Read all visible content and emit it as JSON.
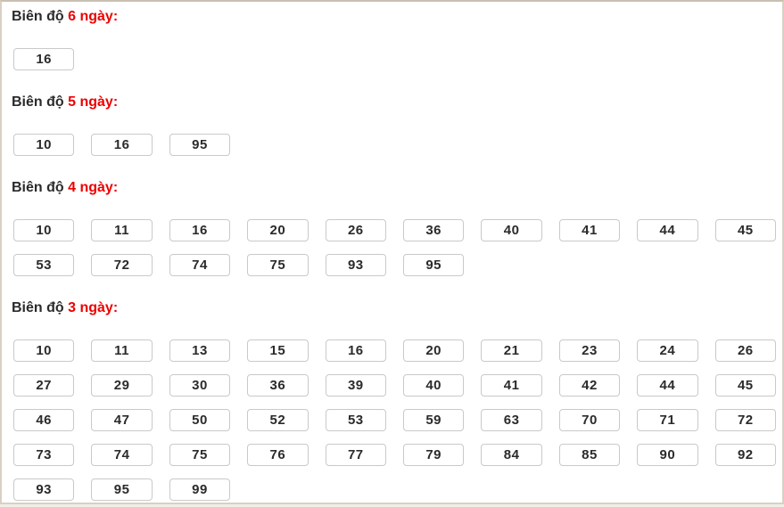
{
  "page": {
    "frame_border_color": "#d8d0c2",
    "background_color": "#ffffff",
    "heading_dark_color": "#2b2b2b",
    "heading_red_color": "#ee0000",
    "cell_border_color": "#c9c9c9"
  },
  "sections": [
    {
      "title_prefix": "Biên độ",
      "title_highlight": "6 ngày:",
      "numbers": [
        "16"
      ]
    },
    {
      "title_prefix": "Biên độ",
      "title_highlight": "5 ngày:",
      "numbers": [
        "10",
        "16",
        "95"
      ]
    },
    {
      "title_prefix": "Biên độ",
      "title_highlight": "4 ngày:",
      "numbers": [
        "10",
        "11",
        "16",
        "20",
        "26",
        "36",
        "40",
        "41",
        "44",
        "45",
        "53",
        "72",
        "74",
        "75",
        "93",
        "95"
      ]
    },
    {
      "title_prefix": "Biên độ",
      "title_highlight": "3 ngày:",
      "numbers": [
        "10",
        "11",
        "13",
        "15",
        "16",
        "20",
        "21",
        "23",
        "24",
        "26",
        "27",
        "29",
        "30",
        "36",
        "39",
        "40",
        "41",
        "42",
        "44",
        "45",
        "46",
        "47",
        "50",
        "52",
        "53",
        "59",
        "63",
        "70",
        "71",
        "72",
        "73",
        "74",
        "75",
        "76",
        "77",
        "79",
        "84",
        "85",
        "90",
        "92",
        "93",
        "95",
        "99"
      ]
    }
  ]
}
